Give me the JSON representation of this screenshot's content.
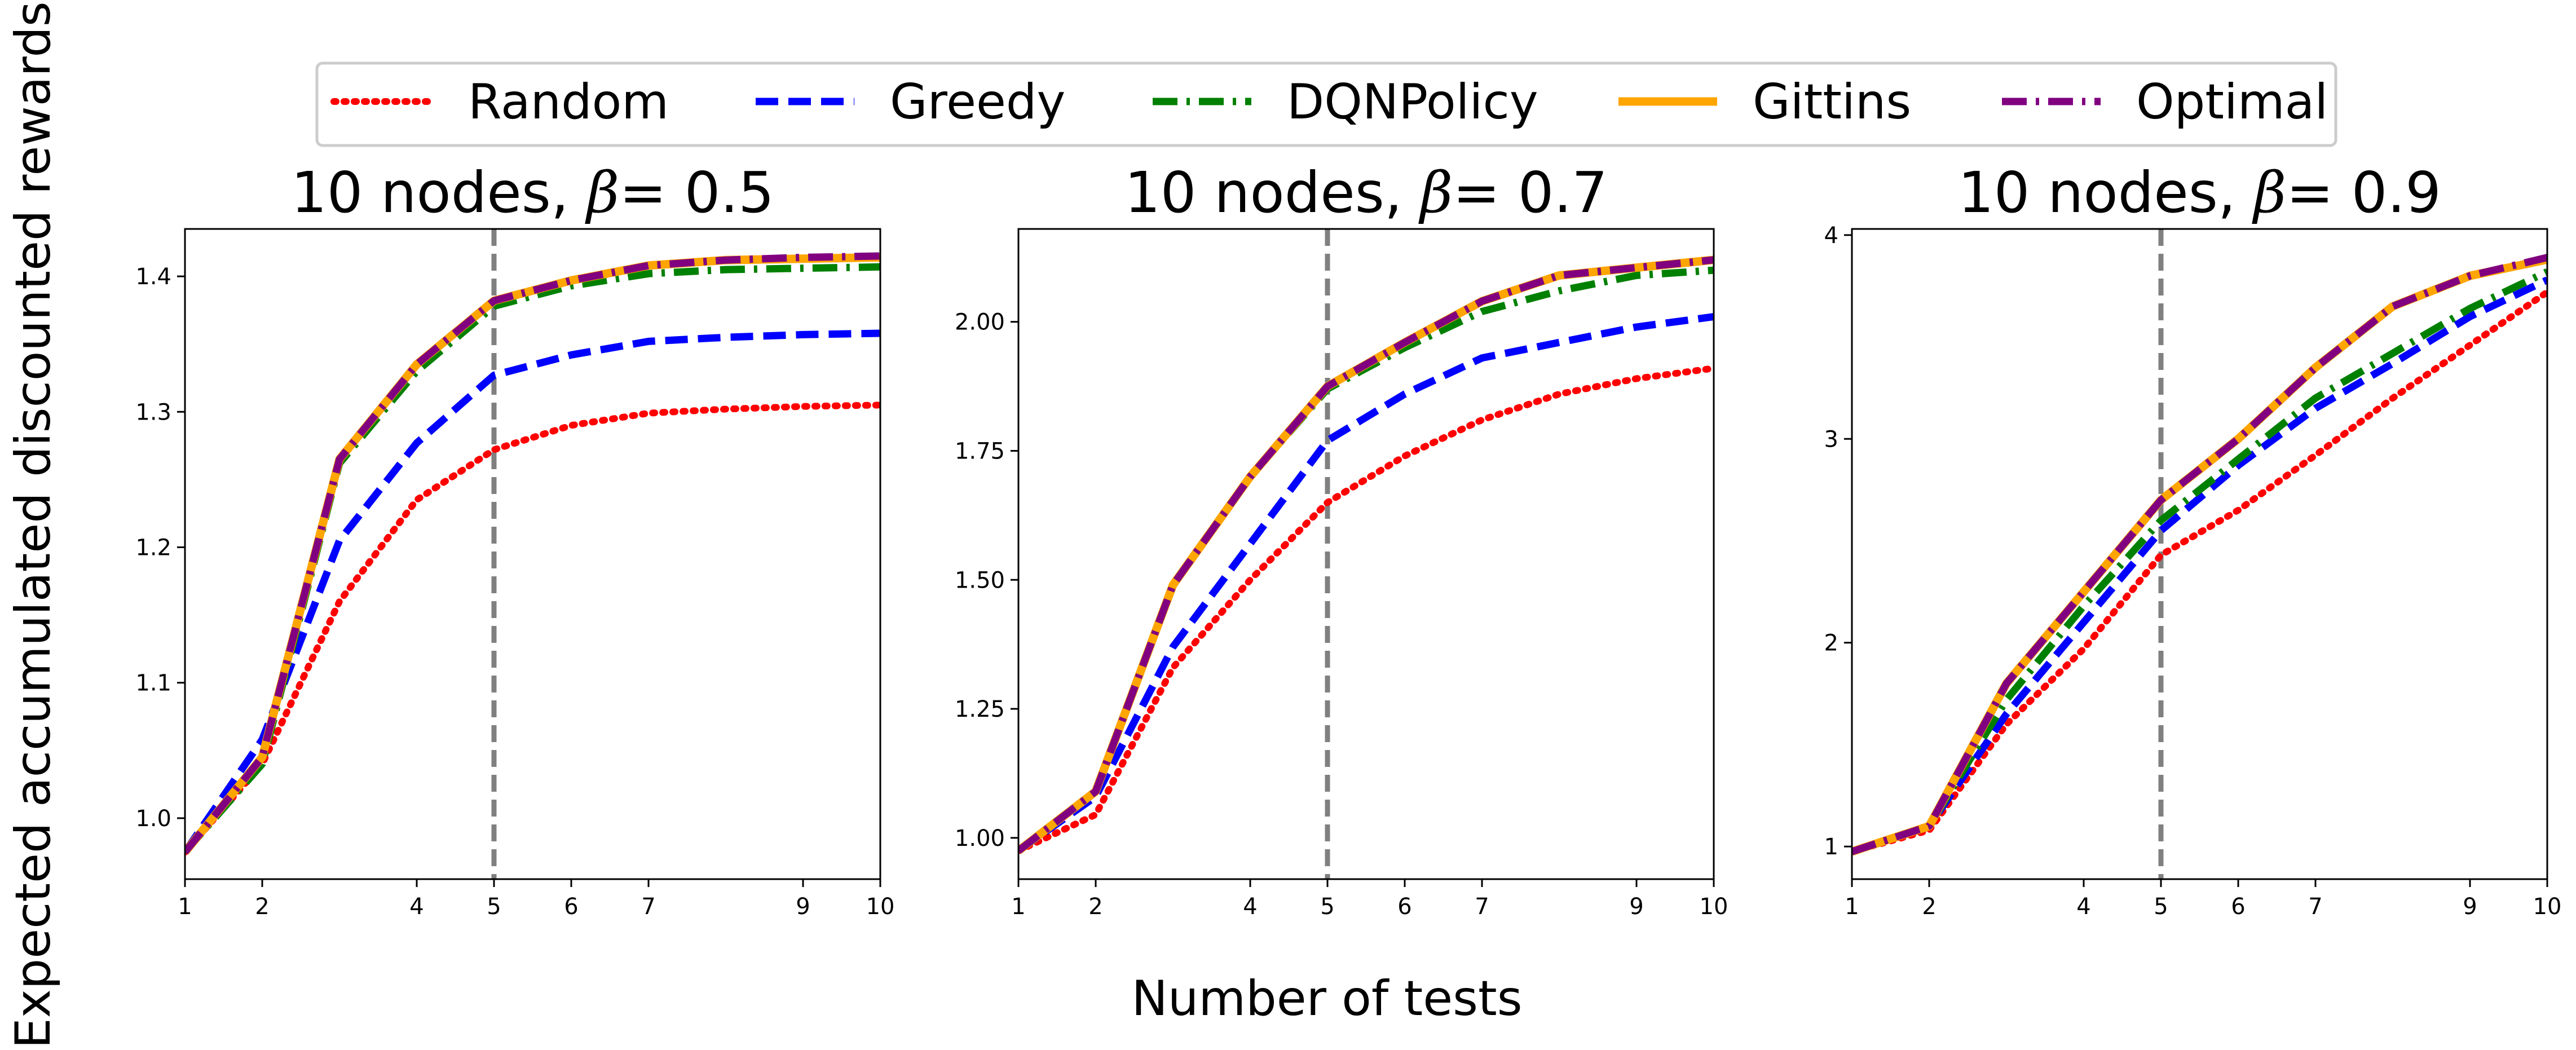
{
  "figure": {
    "ylabel": "Expected accumulated discounted rewards",
    "xlabel": "Number of tests"
  },
  "legend": {
    "placement": "top-center",
    "items": [
      {
        "label": "Random",
        "color": "#ff0000",
        "style": "dotted"
      },
      {
        "label": "Greedy",
        "color": "#0000ff",
        "style": "dashed"
      },
      {
        "label": "DQNPolicy",
        "color": "#008000",
        "style": "dashdot"
      },
      {
        "label": "Gittins",
        "color": "#ffa500",
        "style": "solid"
      },
      {
        "label": "Optimal",
        "color": "#800080",
        "style": "dashdot"
      }
    ]
  },
  "chart_data": [
    {
      "type": "line",
      "title_prefix": "10 nodes, ",
      "title_symbol": "β",
      "title_value": "= 0.5",
      "xlim": [
        1,
        10
      ],
      "ylim": [
        0.955,
        1.435
      ],
      "xticks": [
        1,
        2,
        4,
        5,
        6,
        7,
        9,
        10
      ],
      "yticks": [
        1.0,
        1.1,
        1.2,
        1.3,
        1.4
      ],
      "yticklabels": [
        "1.0",
        "1.1",
        "1.2",
        "1.3",
        "1.4"
      ],
      "vline_x": 5,
      "x": [
        1,
        2,
        3,
        4,
        5,
        6,
        7,
        8,
        9,
        10
      ],
      "series": [
        {
          "name": "Random",
          "values": [
            0.975,
            1.04,
            1.16,
            1.235,
            1.272,
            1.29,
            1.299,
            1.302,
            1.304,
            1.305
          ]
        },
        {
          "name": "Greedy",
          "values": [
            0.975,
            1.058,
            1.205,
            1.277,
            1.327,
            1.342,
            1.352,
            1.355,
            1.357,
            1.358
          ]
        },
        {
          "name": "DQNPolicy",
          "values": [
            0.975,
            1.04,
            1.262,
            1.33,
            1.378,
            1.393,
            1.402,
            1.405,
            1.406,
            1.407
          ]
        },
        {
          "name": "Gittins",
          "values": [
            0.975,
            1.045,
            1.265,
            1.335,
            1.382,
            1.397,
            1.408,
            1.412,
            1.413,
            1.414
          ]
        },
        {
          "name": "Optimal",
          "values": [
            0.975,
            1.045,
            1.265,
            1.335,
            1.382,
            1.397,
            1.408,
            1.412,
            1.414,
            1.415
          ]
        }
      ]
    },
    {
      "type": "line",
      "title_prefix": "10 nodes, ",
      "title_symbol": "β",
      "title_value": "= 0.7",
      "xlim": [
        1,
        10
      ],
      "ylim": [
        0.92,
        2.18
      ],
      "xticks": [
        1,
        2,
        4,
        5,
        6,
        7,
        9,
        10
      ],
      "yticks": [
        1.0,
        1.25,
        1.5,
        1.75,
        2.0
      ],
      "yticklabels": [
        "1.00",
        "1.25",
        "1.50",
        "1.75",
        "2.00"
      ],
      "vline_x": 5,
      "x": [
        1,
        2,
        3,
        4,
        5,
        6,
        7,
        8,
        9,
        10
      ],
      "series": [
        {
          "name": "Random",
          "values": [
            0.975,
            1.045,
            1.33,
            1.5,
            1.65,
            1.74,
            1.81,
            1.86,
            1.89,
            1.91
          ]
        },
        {
          "name": "Greedy",
          "values": [
            0.975,
            1.08,
            1.37,
            1.57,
            1.77,
            1.86,
            1.93,
            1.96,
            1.99,
            2.01
          ]
        },
        {
          "name": "DQNPolicy",
          "values": [
            0.975,
            1.09,
            1.49,
            1.7,
            1.87,
            1.95,
            2.02,
            2.06,
            2.09,
            2.1
          ]
        },
        {
          "name": "Gittins",
          "values": [
            0.975,
            1.09,
            1.49,
            1.7,
            1.875,
            1.96,
            2.04,
            2.09,
            2.105,
            2.12
          ]
        },
        {
          "name": "Optimal",
          "values": [
            0.975,
            1.09,
            1.49,
            1.7,
            1.875,
            1.96,
            2.04,
            2.09,
            2.105,
            2.12
          ]
        }
      ]
    },
    {
      "type": "line",
      "title_prefix": "10 nodes, ",
      "title_symbol": "β",
      "title_value": "= 0.9",
      "xlim": [
        1,
        10
      ],
      "ylim": [
        0.84,
        4.03
      ],
      "xticks": [
        1,
        2,
        4,
        5,
        6,
        7,
        9,
        10
      ],
      "yticks": [
        1,
        2,
        3,
        4
      ],
      "yticklabels": [
        "1",
        "2",
        "3",
        "4"
      ],
      "vline_x": 5,
      "x": [
        1,
        2,
        3,
        4,
        5,
        6,
        7,
        8,
        9,
        10
      ],
      "series": [
        {
          "name": "Random",
          "values": [
            0.975,
            1.08,
            1.6,
            1.97,
            2.43,
            2.65,
            2.92,
            3.2,
            3.46,
            3.72
          ]
        },
        {
          "name": "Greedy",
          "values": [
            0.975,
            1.1,
            1.65,
            2.1,
            2.55,
            2.87,
            3.15,
            3.37,
            3.6,
            3.78
          ]
        },
        {
          "name": "DQNPolicy",
          "values": [
            0.975,
            1.1,
            1.72,
            2.18,
            2.6,
            2.9,
            3.2,
            3.42,
            3.64,
            3.82
          ]
        },
        {
          "name": "Gittins",
          "values": [
            0.975,
            1.1,
            1.8,
            2.25,
            2.7,
            3.0,
            3.35,
            3.65,
            3.8,
            3.88
          ]
        },
        {
          "name": "Optimal",
          "values": [
            0.975,
            1.1,
            1.8,
            2.25,
            2.7,
            3.0,
            3.35,
            3.65,
            3.8,
            3.89
          ]
        }
      ]
    }
  ]
}
